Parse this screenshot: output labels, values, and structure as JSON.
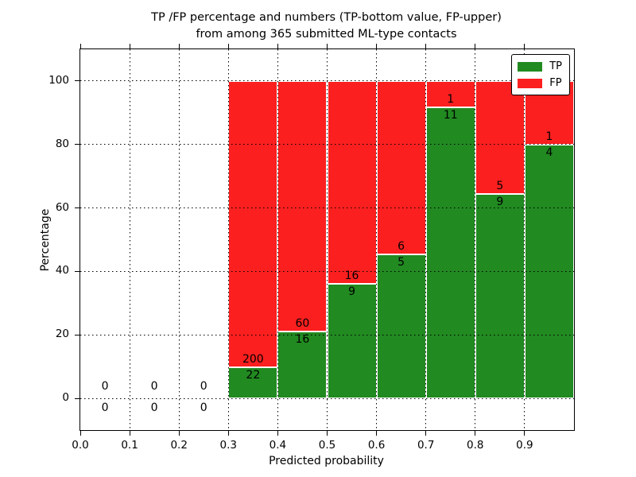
{
  "title": {
    "line1": "TP /FP percentage and numbers (TP-bottom value, FP-upper)",
    "line2": "from among 365 submitted ML-type contacts"
  },
  "chart_data": {
    "type": "bar",
    "stacked": true,
    "title": "TP /FP percentage and numbers (TP-bottom value, FP-upper)\nfrom among 365 submitted ML-type contacts",
    "xlabel": "Predicted probability",
    "ylabel": "Percentage",
    "xlim": [
      0.0,
      1.0
    ],
    "ylim": [
      -10,
      110
    ],
    "bin_width": 0.1,
    "bin_starts": [
      0.0,
      0.1,
      0.2,
      0.3,
      0.4,
      0.5,
      0.6,
      0.7,
      0.8,
      0.9
    ],
    "xtick_labels": [
      "0.0",
      "0.1",
      "0.2",
      "0.3",
      "0.4",
      "0.5",
      "0.6",
      "0.7",
      "0.8",
      "0.9"
    ],
    "ytick_values": [
      0,
      20,
      40,
      60,
      80,
      100
    ],
    "ytick_labels": [
      "0",
      "20",
      "40",
      "60",
      "80",
      "100"
    ],
    "grid": "dotted",
    "total_contacts": 365,
    "legend": {
      "position": "upper right",
      "entries": [
        {
          "label": "TP",
          "color": "#218a21"
        },
        {
          "label": "FP",
          "color": "#fb1f1f"
        }
      ]
    },
    "series": [
      {
        "name": "TP",
        "color": "#218a21",
        "counts": [
          0,
          0,
          0,
          22,
          16,
          9,
          5,
          11,
          9,
          4
        ],
        "pct": [
          0,
          0,
          0,
          9.91,
          21.05,
          36.0,
          45.45,
          91.67,
          64.29,
          80.0
        ]
      },
      {
        "name": "FP",
        "color": "#fb1f1f",
        "counts": [
          0,
          0,
          0,
          200,
          60,
          16,
          6,
          1,
          5,
          1
        ],
        "pct": [
          0,
          0,
          0,
          90.09,
          78.95,
          64.0,
          54.55,
          8.33,
          35.71,
          20.0
        ]
      }
    ]
  },
  "colors": {
    "tp": "#218a21",
    "fp": "#fb1f1f",
    "background": "#ffffff",
    "grid": "#000000",
    "text": "#000000"
  }
}
